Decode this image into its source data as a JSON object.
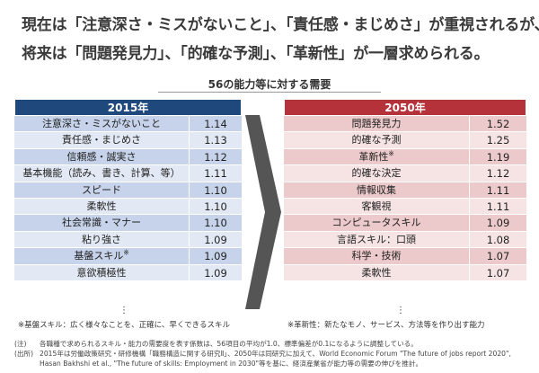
{
  "headline": {
    "line1": "現在は「注意深さ・ミスがないこと」、「責任感・まじめさ」が重視されるが、",
    "line2": "将来は「問題発見力」、「的確な予測」、「革新性」が一層求められる。"
  },
  "subtitle": "56の能力等に対する需要",
  "table_2015": {
    "year": "2015年",
    "rows": [
      {
        "name": "注意深さ・ミスがないこと",
        "value": "1.14",
        "mark": ""
      },
      {
        "name": "責任感・まじめさ",
        "value": "1.13",
        "mark": ""
      },
      {
        "name": "信頼感・誠実さ",
        "value": "1.12",
        "mark": ""
      },
      {
        "name": "基本機能（読み、書き、計算、等）",
        "value": "1.11",
        "mark": ""
      },
      {
        "name": "スピード",
        "value": "1.10",
        "mark": ""
      },
      {
        "name": "柔軟性",
        "value": "1.10",
        "mark": ""
      },
      {
        "name": "社会常識・マナー",
        "value": "1.10",
        "mark": ""
      },
      {
        "name": "粘り強さ",
        "value": "1.09",
        "mark": ""
      },
      {
        "name": "基盤スキル",
        "value": "1.09",
        "mark": "※"
      },
      {
        "name": "意欲積極性",
        "value": "1.09",
        "mark": ""
      }
    ],
    "ellipsis": "⋮",
    "note": "※基盤スキル：広く様々なことを、正確に、早くできるスキル"
  },
  "table_2050": {
    "year": "2050年",
    "rows": [
      {
        "name": "問題発見力",
        "value": "1.52",
        "mark": ""
      },
      {
        "name": "的確な予測",
        "value": "1.25",
        "mark": ""
      },
      {
        "name": "革新性",
        "value": "1.19",
        "mark": "※"
      },
      {
        "name": "的確な決定",
        "value": "1.12",
        "mark": ""
      },
      {
        "name": "情報収集",
        "value": "1.11",
        "mark": ""
      },
      {
        "name": "客観視",
        "value": "1.11",
        "mark": ""
      },
      {
        "name": "コンピュータスキル",
        "value": "1.09",
        "mark": ""
      },
      {
        "name": "言語スキル：口頭",
        "value": "1.08",
        "mark": ""
      },
      {
        "name": "科学・技術",
        "value": "1.07",
        "mark": ""
      },
      {
        "name": "柔軟性",
        "value": "1.07",
        "mark": ""
      }
    ],
    "ellipsis": "⋮",
    "note": "※革新性：新たなモノ、サービス、方法等を作り出す能力"
  },
  "footer": {
    "note_label": "(注)",
    "note_text": "各職種で求められるスキル・能力の需要度を表す係数は、56項目の平均が1.0、標準偏差が0.1になるように調整している。",
    "source_label": "(出所)",
    "source_text": "2015年は労働政策研究・研修機構「職務構造に関する研究Ⅱ」、2050年は同研究に加えて、World Economic Forum \"The future of jobs report 2020\",",
    "source_text2": "Hasan Bakhshi et al., \"The future of skills: Employment in 2030\"等を基に、経済産業省が能力等の需要の伸びを推計。"
  },
  "colors": {
    "header_2015": "#1f497d",
    "header_2050": "#b5323a",
    "arrow": "#555555"
  },
  "icons": {
    "arrow": "chevron-right-icon"
  }
}
